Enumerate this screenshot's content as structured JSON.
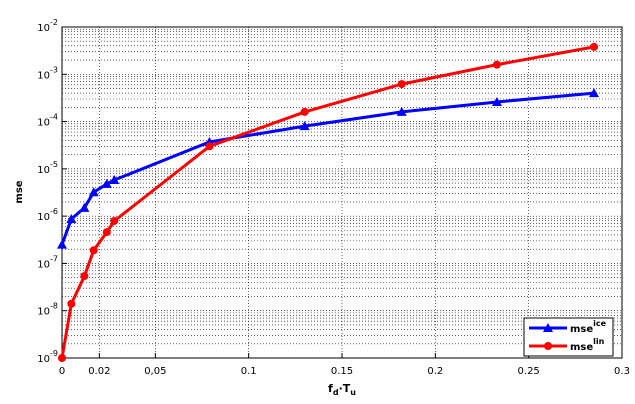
{
  "chart_data": {
    "type": "line",
    "xlabel": [
      "f",
      "d",
      "·T",
      "u"
    ],
    "ylabel": "mse",
    "log_y": true,
    "grid": true,
    "legend_position": "lower right",
    "xlim": [
      0,
      0.3
    ],
    "ylim": [
      1e-09,
      0.01
    ],
    "xticks": [
      0,
      0.02,
      {
        "value": 0.05,
        "label": "0,05"
      },
      0.1,
      0.15,
      0.2,
      0.25,
      0.3
    ],
    "yticks": [
      {
        "value": 1e-09,
        "label": [
          "10",
          "-9"
        ]
      },
      {
        "value": 1e-08,
        "label": [
          "10",
          "-8"
        ]
      },
      {
        "value": 1e-07,
        "label": [
          "10",
          "-7"
        ]
      },
      {
        "value": 1e-06,
        "label": [
          "10",
          "-6"
        ]
      },
      {
        "value": 1e-05,
        "label": [
          "10",
          "-5"
        ]
      },
      {
        "value": 0.0001,
        "label": [
          "10",
          "-4"
        ]
      },
      {
        "value": 0.001,
        "label": [
          "10",
          "-3"
        ]
      },
      {
        "value": 0.01,
        "label": [
          "10",
          "-2"
        ]
      }
    ],
    "x": [
      0,
      0.005,
      0.012,
      0.017,
      0.024,
      0.028,
      0.079,
      0.13,
      0.182,
      0.233,
      0.285
    ],
    "series": [
      {
        "name": "mse",
        "name_sup": "ice",
        "color": "#0000ff",
        "marker": "triangle",
        "values": [
          2.5e-07,
          8.7e-07,
          1.5e-06,
          3.2e-06,
          4.8e-06,
          5.8e-06,
          3.7e-05,
          8e-05,
          0.00016,
          0.00026,
          0.0004
        ]
      },
      {
        "name": "mse",
        "name_sup": "lin",
        "color": "#ff0000",
        "marker": "circle",
        "values": [
          1e-09,
          1.4e-08,
          5.4e-08,
          1.9e-07,
          4.6e-07,
          7.9e-07,
          3e-05,
          0.00016,
          0.00062,
          0.0016,
          0.0038
        ]
      }
    ]
  }
}
